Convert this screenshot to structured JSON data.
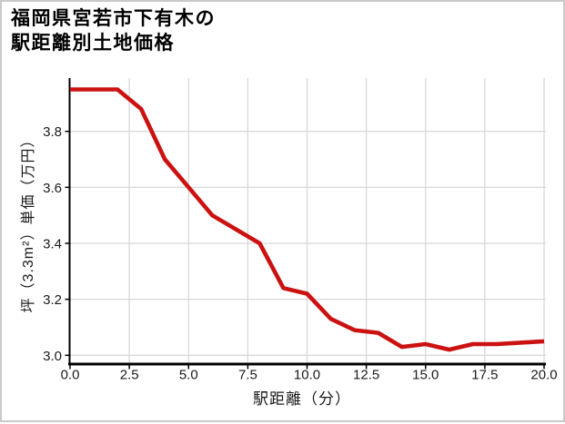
{
  "page": {
    "title_line1": "福岡県宮若市下有木の",
    "title_line2": "駅距離別土地価格"
  },
  "chart_data": {
    "type": "line",
    "title": "福岡県宮若市下有木の駅距離別土地価格",
    "xlabel": "駅距離（分）",
    "ylabel": "坪（3.3m²）単価（万円）",
    "x": [
      0,
      1,
      2,
      3,
      4,
      5,
      6,
      7,
      8,
      9,
      10,
      11,
      12,
      13,
      14,
      15,
      16,
      17,
      18,
      19,
      20
    ],
    "values": [
      3.95,
      3.95,
      3.95,
      3.88,
      3.7,
      3.6,
      3.5,
      3.45,
      3.4,
      3.24,
      3.22,
      3.13,
      3.09,
      3.08,
      3.03,
      3.04,
      3.02,
      3.04,
      3.04,
      3.045,
      3.05
    ],
    "series_name": "駅距離別土地価格",
    "x_tick_labels": [
      "0.0",
      "2.5",
      "5.0",
      "7.5",
      "10.0",
      "12.5",
      "15.0",
      "17.5",
      "20.0"
    ],
    "x_tick_values": [
      0,
      2.5,
      5,
      7.5,
      10,
      12.5,
      15,
      17.5,
      20
    ],
    "y_tick_labels": [
      "3.0",
      "3.2",
      "3.4",
      "3.6",
      "3.8"
    ],
    "y_tick_values": [
      3.0,
      3.2,
      3.4,
      3.6,
      3.8
    ],
    "xlim": [
      0,
      20
    ],
    "ylim": [
      2.97,
      3.99
    ],
    "grid": true,
    "legend": false,
    "line_color": "#cc1111",
    "grid_color": "#d8d8d8",
    "axis_color": "#000000",
    "tick_text_color": "#1a1a1a"
  }
}
